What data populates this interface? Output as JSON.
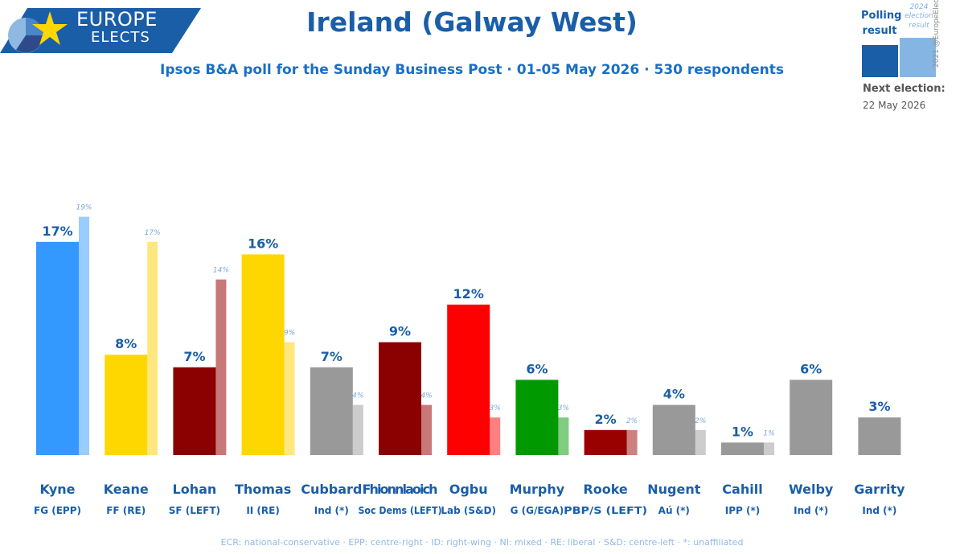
{
  "logo": {
    "line1": "EUROPE",
    "line2": "ELECTS"
  },
  "title": "Ireland (Galway West)",
  "subtitle": "Ipsos B&A poll for the Sunday Business Post · 01-05 May 2026 · 530 respondents",
  "legend": {
    "polling_label": "Polling result",
    "election_label": "2024 election result",
    "polling_color": "#1a5ea8",
    "election_color": "#85b6e3",
    "copyright": "2021 @EuropeElects",
    "next_election_label": "Next election:",
    "next_election_date": "22 May 2026"
  },
  "footnote": "ECR: national-conservative · EPP: centre-right · ID: right-wing · NI: mixed · RE: liberal · S&D: centre-left · *: unaffiliated",
  "chart_data": {
    "type": "bar",
    "ylim": [
      0,
      20
    ],
    "grid": false,
    "categories": [
      "Kyne",
      "Keane",
      "Lohan",
      "Thomas",
      "Cubbard",
      "Fhionnlaoich",
      "Ogbu",
      "Murphy",
      "Rooke",
      "Nugent",
      "Cahill",
      "Welby",
      "Garrity"
    ],
    "parties": [
      "FG (EPP)",
      "FF (RE)",
      "SF (LEFT)",
      "II (RE)",
      "Ind (*)",
      "Soc Dems (LEFT)",
      "Lab (S&D)",
      "G (G/EGA)",
      "PBP/S (LEFT)",
      "Aú (*)",
      "IPP (*)",
      "Ind (*)",
      "Ind (*)"
    ],
    "colors": [
      "#3399ff",
      "#ffd700",
      "#8b0000",
      "#ffd700",
      "#999999",
      "#8b0000",
      "#ff0000",
      "#009900",
      "#990000",
      "#999999",
      "#999999",
      "#999999",
      "#999999"
    ],
    "prev_colors": [
      "#99ccff",
      "#ffe780",
      "#c87878",
      "#ffe780",
      "#cccccc",
      "#c87878",
      "#ff8080",
      "#80cc80",
      "#cc8080",
      "#cccccc",
      "#cccccc",
      "#cccccc",
      "#cccccc"
    ],
    "series": [
      {
        "name": "Polling result",
        "values": [
          17,
          8,
          7,
          16,
          7,
          9,
          12,
          6,
          2,
          4,
          1,
          6,
          3
        ],
        "labels": [
          "17%",
          "8%",
          "7%",
          "16%",
          "7%",
          "9%",
          "12%",
          "6%",
          "2%",
          "4%",
          "1%",
          "6%",
          "3%"
        ]
      },
      {
        "name": "2024 election result",
        "values": [
          19,
          17,
          14,
          9,
          4,
          4,
          3,
          3,
          2,
          2,
          1,
          null,
          null
        ],
        "labels": [
          "19%",
          "17%",
          "14%",
          "9%",
          "4%",
          "4%",
          "3%",
          "3%",
          "2%",
          "2%",
          "1%",
          "",
          ""
        ]
      }
    ]
  }
}
